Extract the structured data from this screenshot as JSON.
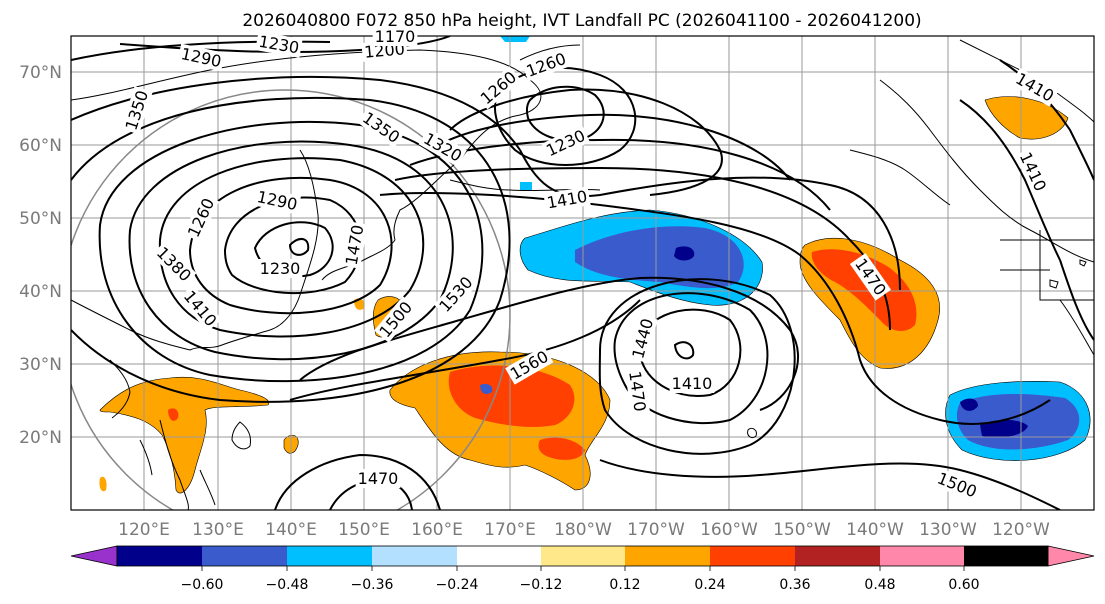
{
  "title": "2026040800 F072 850 hPa height, IVT Landfall PC (2026041100 - 2026041200)",
  "lat_labels": [
    "70°N",
    "60°N",
    "50°N",
    "40°N",
    "30°N",
    "20°N"
  ],
  "lon_labels": [
    "120°E",
    "130°E",
    "140°E",
    "150°E",
    "160°E",
    "170°E",
    "180°W",
    "170°W",
    "160°W",
    "150°W",
    "140°W",
    "130°W",
    "120°W"
  ],
  "colorbar": {
    "ticks": [
      "−0.60",
      "−0.48",
      "−0.36",
      "−0.24",
      "−0.12",
      "0.12",
      "0.24",
      "0.36",
      "0.48",
      "0.60"
    ],
    "colors": [
      "#9932CC",
      "#00008B",
      "#3A5BCC",
      "#00BFFF",
      "#B3E0FF",
      "#FFFFFF",
      "#FFE88A",
      "#FFA500",
      "#FF4000",
      "#B22222",
      "#FF88AA"
    ]
  },
  "contour_labels": [
    {
      "id": "c1230a",
      "text": "1230"
    },
    {
      "id": "c1200",
      "text": "1200"
    },
    {
      "id": "c1170",
      "text": "1170"
    },
    {
      "id": "c1290a",
      "text": "1290"
    },
    {
      "id": "c1260a",
      "text": "1260"
    },
    {
      "id": "c1260b",
      "text": "1260"
    },
    {
      "id": "c1350a",
      "text": "1350"
    },
    {
      "id": "c1350b",
      "text": "1350"
    },
    {
      "id": "c1320",
      "text": "1320"
    },
    {
      "id": "c1230b",
      "text": "1230"
    },
    {
      "id": "c1410a",
      "text": "1410"
    },
    {
      "id": "c1410b",
      "text": "1410"
    },
    {
      "id": "c1410c",
      "text": "1410"
    },
    {
      "id": "c1290b",
      "text": "1290"
    },
    {
      "id": "c1260c",
      "text": "1260"
    },
    {
      "id": "c1230c",
      "text": "1230"
    },
    {
      "id": "c1380",
      "text": "1380"
    },
    {
      "id": "c1410d",
      "text": "1410"
    },
    {
      "id": "c1500a",
      "text": "1500"
    },
    {
      "id": "c1530",
      "text": "1530"
    },
    {
      "id": "c1560",
      "text": "1560"
    },
    {
      "id": "c1470a",
      "text": "1470"
    },
    {
      "id": "c1440",
      "text": "1440"
    },
    {
      "id": "c1470b",
      "text": "1470"
    },
    {
      "id": "c1410e",
      "text": "1410"
    },
    {
      "id": "c1470c",
      "text": "1470"
    },
    {
      "id": "c1500b",
      "text": "1500"
    },
    {
      "id": "c1470d",
      "text": "1470"
    }
  ]
}
